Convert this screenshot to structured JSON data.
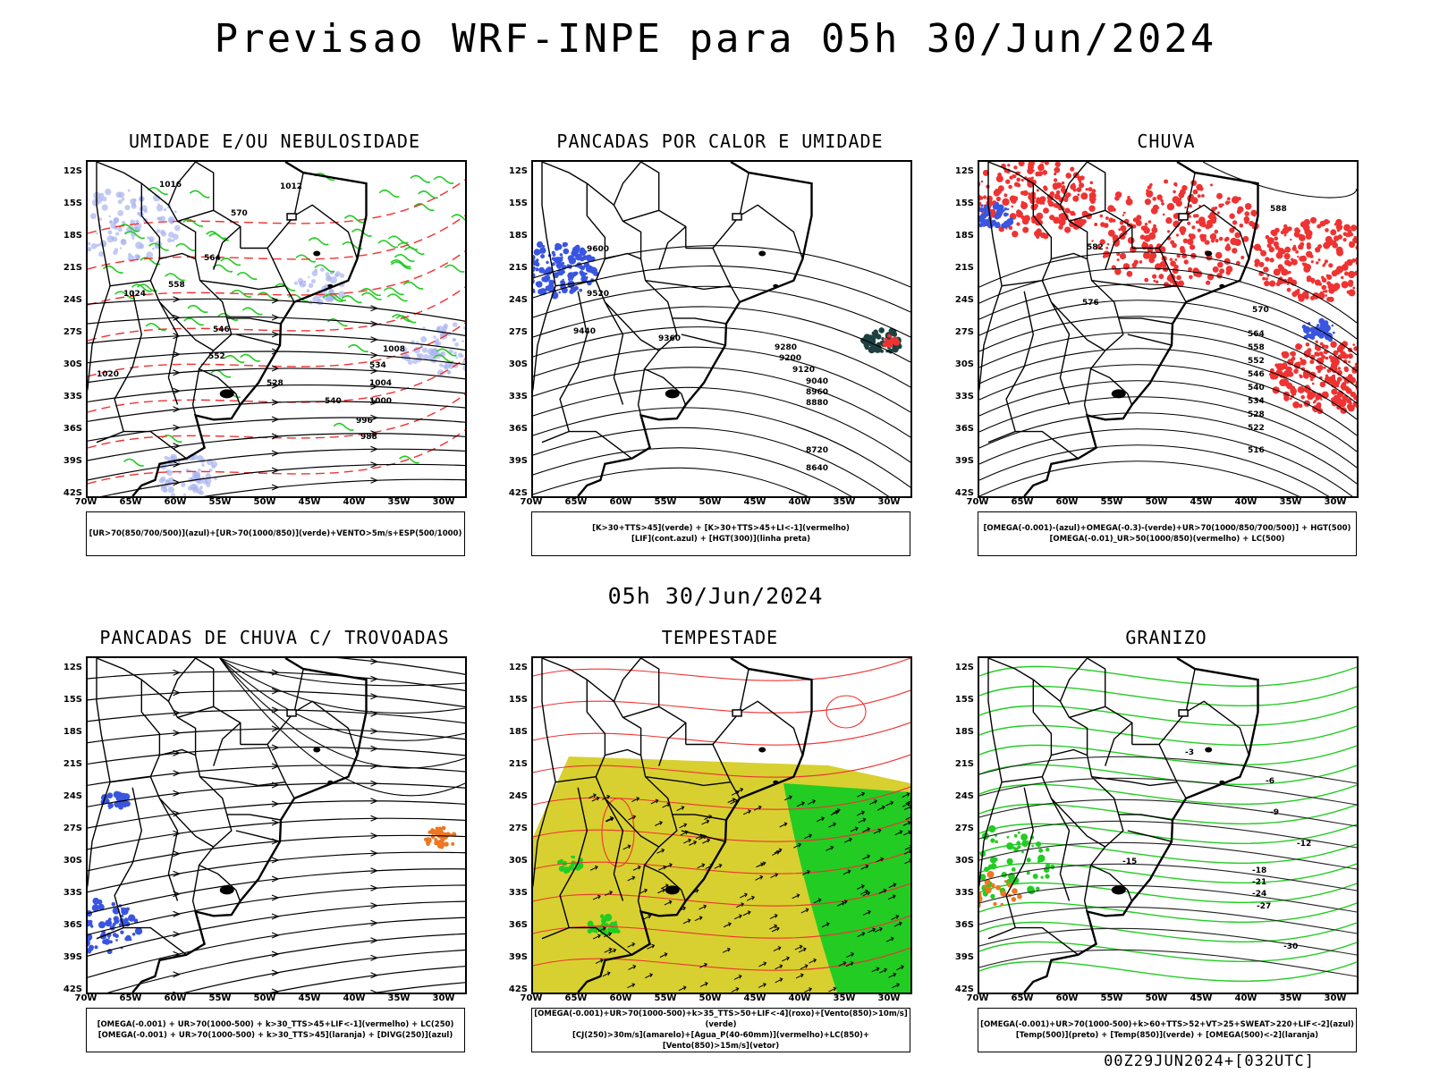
{
  "header": {
    "title": "Previsao WRF-INPE  para 05h 30/Jun/2024",
    "subtitle": "05h 30/Jun/2024",
    "footer": "00Z29JUN2024+[032UTC]"
  },
  "axes": {
    "lat_labels": [
      "12S",
      "15S",
      "18S",
      "21S",
      "24S",
      "27S",
      "30S",
      "33S",
      "36S",
      "39S",
      "42S"
    ],
    "lon_labels": [
      "70W",
      "65W",
      "60W",
      "55W",
      "50W",
      "45W",
      "40W",
      "35W",
      "30W"
    ]
  },
  "panels": [
    {
      "id": "umidade",
      "title": "UMIDADE E/OU NEBULOSIDADE",
      "legend": [
        "[UR>70(850/700/500)](azul)+[UR>70(1000/850)](verde)+VENTO>5m/s+ESP(500/1000)"
      ],
      "contour_labels": [
        "1016",
        "1020",
        "1024",
        "1012",
        "1008",
        "1004",
        "1000",
        "996",
        "988",
        "570",
        "564",
        "558",
        "552",
        "546",
        "540",
        "534",
        "528"
      ]
    },
    {
      "id": "pancadas-calor",
      "title": "PANCADAS POR CALOR E UMIDADE",
      "legend": [
        "[K>30+TTS>45](verde) + [K>30+TTS>45+LI<-1](vermelho)",
        "[LIF](cont.azul) + [HGT(300)](linha preta)"
      ],
      "contour_labels": [
        "9600",
        "9520",
        "9440",
        "9360",
        "9280",
        "9200",
        "9120",
        "9040",
        "8960",
        "8880",
        "8720",
        "8640"
      ]
    },
    {
      "id": "chuva",
      "title": "CHUVA",
      "legend": [
        "[OMEGA(-0.001)-(azul)+OMEGA(-0.3)-(verde)+UR>70(1000/850/700/500)] + HGT(500)",
        "[OMEGA(-0.01)_UR>50(1000/850)(vermelho) + LC(500)"
      ],
      "contour_labels": [
        "588",
        "582",
        "576",
        "570",
        "564",
        "558",
        "552",
        "546",
        "540",
        "534",
        "528",
        "522",
        "516"
      ]
    },
    {
      "id": "trovoadas",
      "title": "PANCADAS DE CHUVA C/ TROVOADAS",
      "legend": [
        "[OMEGA(-0.001) + UR>70(1000-500) + k>30_TTS>45+LIF<-1](vermelho) + LC(250)",
        "[OMEGA(-0.001) + UR>70(1000-500) + k>30_TTS>45](laranja) + [DIVG(250)](azul)"
      ],
      "contour_labels": []
    },
    {
      "id": "tempestade",
      "title": "TEMPESTADE",
      "legend": [
        "[OMEGA(-0.001)+UR>70(1000-500)+k>35_TTS>50+LIF<-4](roxo)+[Vento(850)>10m/s](verde)",
        "[CJ(250)>30m/s](amarelo)+[Agua_P(40-60mm)](vermelho)+LC(850)+[Vento(850)>15m/s](vetor)"
      ],
      "contour_labels": []
    },
    {
      "id": "granizo",
      "title": "GRANIZO",
      "legend": [
        "[OMEGA(-0.001)+UR>70(1000-500)+k>60+TTS>52+VT>25+SWEAT>220+LIF<-2](azul)",
        "[Temp(500)](preto) + [Temp(850)](verde) + [OMEGA(500)<-2](laranja)"
      ],
      "contour_labels": [
        "-3",
        "-6",
        "-9",
        "-12",
        "-15",
        "-18",
        "-21",
        "-24",
        "-27",
        "-30"
      ]
    }
  ],
  "colors": {
    "blue": "#3a55e0",
    "light_blue": "#aab4f0",
    "green": "#22cc22",
    "red": "#ee3333",
    "orange": "#ee7722",
    "yellow": "#d8d030",
    "dark_teal": "#1e4040"
  }
}
